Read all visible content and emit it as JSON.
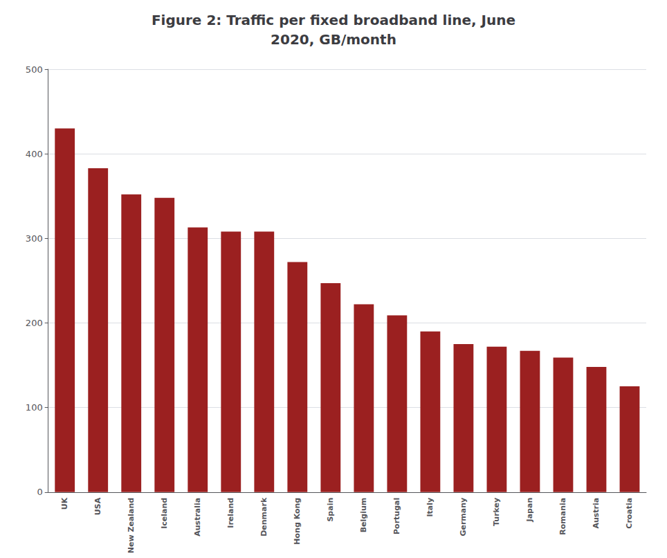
{
  "chart_data": {
    "type": "bar",
    "title": "Figure 2: Traffic per fixed broadband line, June\n2020, GB/month",
    "categories": [
      "UK",
      "USA",
      "New Zealand",
      "Iceland",
      "Australia",
      "Ireland",
      "Denmark",
      "Hong Kong",
      "Spain",
      "Belgium",
      "Portugal",
      "Italy",
      "Germany",
      "Turkey",
      "Japan",
      "Romania",
      "Austria",
      "Croatia"
    ],
    "values": [
      430,
      383,
      352,
      348,
      313,
      308,
      308,
      272,
      247,
      222,
      209,
      190,
      175,
      172,
      167,
      159,
      148,
      125
    ],
    "color": "#9b2020",
    "ylim": [
      0,
      500
    ],
    "yticks": [
      0,
      100,
      200,
      300,
      400,
      500
    ],
    "grid": true
  }
}
